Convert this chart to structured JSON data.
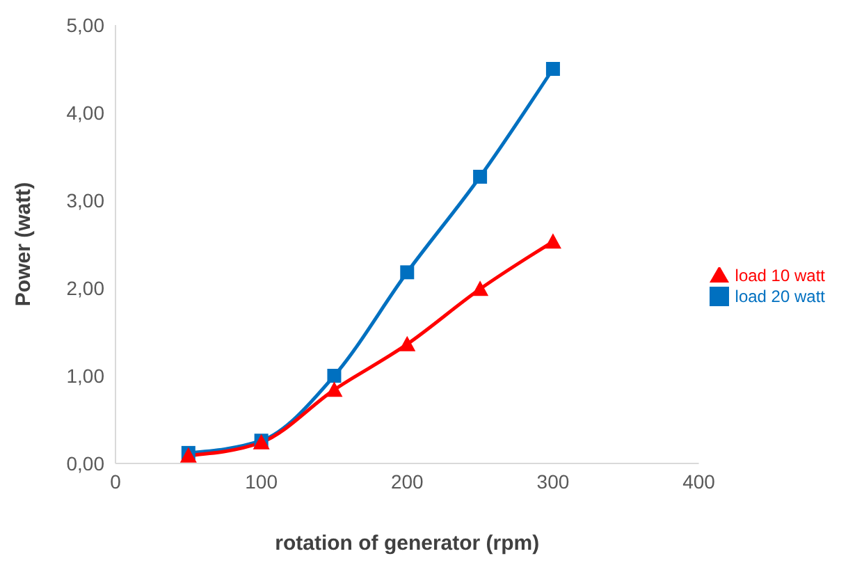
{
  "chart_data": {
    "type": "line",
    "xlabel": "rotation of generator (rpm)",
    "ylabel": "Power (watt)",
    "xlim": [
      0,
      400
    ],
    "xticks": [
      0,
      100,
      200,
      300,
      400
    ],
    "ylim": [
      0,
      5
    ],
    "yticks": [
      {
        "value": 0,
        "label": "0,00"
      },
      {
        "value": 1,
        "label": "1,00"
      },
      {
        "value": 2,
        "label": "2,00"
      },
      {
        "value": 3,
        "label": "3,00"
      },
      {
        "value": 4,
        "label": "4,00"
      },
      {
        "value": 5,
        "label": "5,00"
      }
    ],
    "x": [
      50,
      100,
      150,
      200,
      250,
      300
    ],
    "series": [
      {
        "name": "load 10 watt",
        "color": "#ff0000",
        "marker": "triangle",
        "values": [
          0.09,
          0.24,
          0.84,
          1.36,
          1.99,
          2.53
        ]
      },
      {
        "name": "load 20  watt",
        "color": "#0070c0",
        "marker": "square",
        "values": [
          0.12,
          0.26,
          1.0,
          2.18,
          3.27,
          4.5
        ]
      }
    ],
    "grid": false,
    "legend": "right",
    "line_style": "solid"
  }
}
